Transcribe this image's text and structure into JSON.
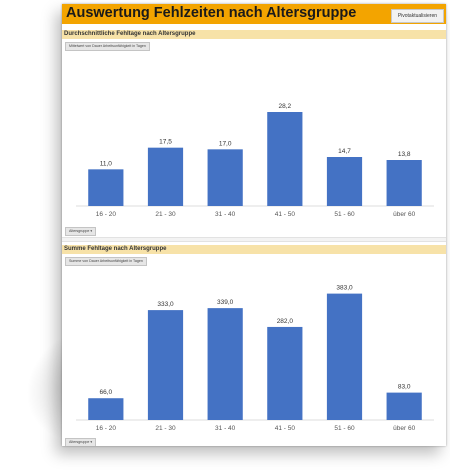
{
  "title": "Auswertung Fehlzeiten nach Altersgruppe",
  "refresh_button": "Pivotaktualisieren",
  "chart_data": [
    {
      "type": "bar",
      "title": "Durchschnittliche Fehltage nach Altersgruppe",
      "value_field": "Mittelwert von Dauer Arbeitsunfähigkeit in Tagen",
      "filter_field": "Altersgruppe",
      "categories": [
        "16 - 20",
        "21 - 30",
        "31 - 40",
        "41 - 50",
        "51 - 60",
        "über 60"
      ],
      "values": [
        11.0,
        17.5,
        17.0,
        28.2,
        14.7,
        13.8
      ],
      "value_labels": [
        "11,0",
        "17,5",
        "17,0",
        "28,2",
        "14,7",
        "13,8"
      ],
      "ylim": [
        0,
        30
      ],
      "color": "#4472c4",
      "grid": false
    },
    {
      "type": "bar",
      "title": "Summe Fehltage nach Altersgruppe",
      "value_field": "Summe von Dauer Arbeitsunfähigkeit in Tagen",
      "filter_field": "Altersgruppe",
      "categories": [
        "16 - 20",
        "21 - 30",
        "31 - 40",
        "41 - 50",
        "51 - 60",
        "über 60"
      ],
      "values": [
        66.0,
        333.0,
        339.0,
        282.0,
        383.0,
        83.0
      ],
      "value_labels": [
        "66,0",
        "333,0",
        "339,0",
        "282,0",
        "383,0",
        "83,0"
      ],
      "ylim": [
        0,
        400
      ],
      "color": "#4472c4",
      "grid": false
    }
  ]
}
